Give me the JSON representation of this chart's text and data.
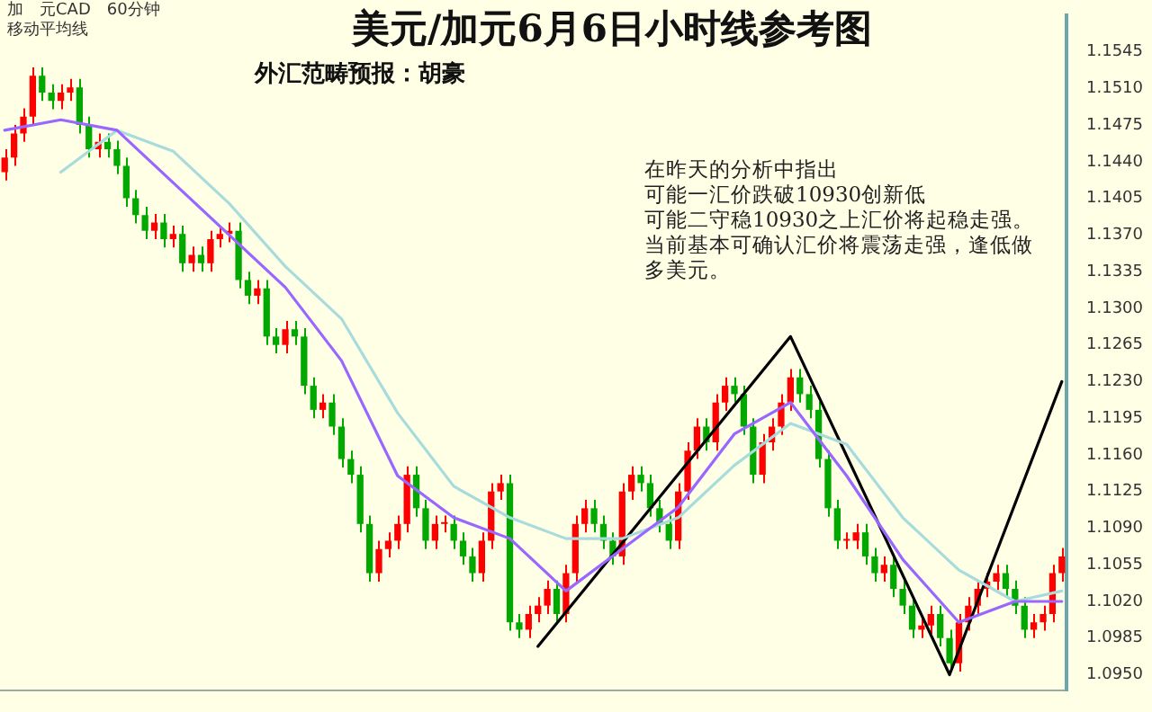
{
  "chart_data": {
    "type": "candlestick",
    "title": "美元/加元6月6日小时线参考图",
    "subtitle": "外汇范畴预报：胡豪",
    "annotations": [
      "加　元CAD　60分钟",
      "移动平均线",
      "在昨天的分析中指出",
      "可能一汇价跌破10930创新低",
      "可能二守稳10930之上汇价将起稳走强。",
      "当前基本可确认汇价将震荡走强，逢低做",
      "多美元。"
    ],
    "categories": [
      null,
      null,
      null,
      null,
      null,
      null,
      null,
      null,
      null,
      null,
      null,
      null,
      null,
      null,
      null,
      null,
      null,
      null,
      null,
      null,
      null,
      null,
      null,
      null,
      null,
      null,
      null,
      null,
      null,
      null,
      null,
      null,
      null,
      null,
      null,
      null,
      null,
      null,
      null,
      null,
      null,
      null,
      null,
      null,
      null,
      null,
      null,
      null,
      null,
      null,
      null,
      null,
      null,
      null,
      null,
      null,
      null,
      null,
      null,
      null,
      null,
      null,
      null,
      null,
      null,
      null,
      null,
      null,
      null,
      null,
      null,
      null,
      null,
      null,
      null,
      null,
      null,
      null,
      null,
      null,
      null,
      null,
      null,
      null,
      null,
      null,
      null,
      null,
      null,
      null,
      null,
      null,
      null,
      null,
      null,
      null,
      null,
      null,
      null,
      null,
      null,
      null,
      null,
      null,
      null,
      null,
      null,
      null,
      null,
      null,
      null,
      null,
      null,
      null
    ],
    "ohlc": [
      [
        1.143,
        1.1452,
        1.1422,
        1.1444
      ],
      [
        1.1444,
        1.1475,
        1.1436,
        1.1467
      ],
      [
        1.1467,
        1.1491,
        1.1459,
        1.1483
      ],
      [
        1.1483,
        1.153,
        1.1475,
        1.1522
      ],
      [
        1.1522,
        1.153,
        1.1498,
        1.1506
      ],
      [
        1.1506,
        1.1514,
        1.149,
        1.1498
      ],
      [
        1.1498,
        1.1514,
        1.149,
        1.1506
      ],
      [
        1.1506,
        1.1519,
        1.1498,
        1.1511
      ],
      [
        1.1511,
        1.1519,
        1.1467,
        1.1475
      ],
      [
        1.1475,
        1.1483,
        1.1444,
        1.1452
      ],
      [
        1.1452,
        1.1467,
        1.1444,
        1.1459
      ],
      [
        1.1459,
        1.1467,
        1.1444,
        1.1452
      ],
      [
        1.1452,
        1.146,
        1.1428,
        1.1436
      ],
      [
        1.1436,
        1.1444,
        1.1397,
        1.1405
      ],
      [
        1.1405,
        1.1413,
        1.1381,
        1.1389
      ],
      [
        1.1389,
        1.1397,
        1.1366,
        1.1374
      ],
      [
        1.1374,
        1.139,
        1.1366,
        1.1382
      ],
      [
        1.1382,
        1.139,
        1.1358,
        1.1366
      ],
      [
        1.1366,
        1.1379,
        1.1358,
        1.1371
      ],
      [
        1.1371,
        1.1379,
        1.1335,
        1.1343
      ],
      [
        1.1343,
        1.1359,
        1.1335,
        1.1351
      ],
      [
        1.1351,
        1.1359,
        1.1335,
        1.1343
      ],
      [
        1.1343,
        1.1374,
        1.1335,
        1.1366
      ],
      [
        1.1366,
        1.1379,
        1.1358,
        1.1371
      ],
      [
        1.1371,
        1.1382,
        1.1363,
        1.1374
      ],
      [
        1.1374,
        1.1382,
        1.1319,
        1.1327
      ],
      [
        1.1327,
        1.1335,
        1.1304,
        1.1312
      ],
      [
        1.1312,
        1.1327,
        1.1304,
        1.1319
      ],
      [
        1.1319,
        1.1327,
        1.1265,
        1.1273
      ],
      [
        1.1273,
        1.1281,
        1.1257,
        1.1265
      ],
      [
        1.1265,
        1.1288,
        1.1257,
        1.128
      ],
      [
        1.128,
        1.1288,
        1.1265,
        1.1273
      ],
      [
        1.1273,
        1.1281,
        1.1218,
        1.1226
      ],
      [
        1.1226,
        1.1234,
        1.1195,
        1.1203
      ],
      [
        1.1203,
        1.1218,
        1.1195,
        1.121
      ],
      [
        1.121,
        1.1218,
        1.1179,
        1.1187
      ],
      [
        1.1187,
        1.1195,
        1.1148,
        1.1156
      ],
      [
        1.1156,
        1.1164,
        1.1133,
        1.1141
      ],
      [
        1.1141,
        1.1149,
        1.1086,
        1.1094
      ],
      [
        1.1094,
        1.1102,
        1.1039,
        1.1047
      ],
      [
        1.1047,
        1.1078,
        1.1039,
        1.107
      ],
      [
        1.107,
        1.1086,
        1.1062,
        1.1078
      ],
      [
        1.1078,
        1.1102,
        1.107,
        1.1094
      ],
      [
        1.1094,
        1.1149,
        1.1086,
        1.1141
      ],
      [
        1.1141,
        1.1149,
        1.1101,
        1.1109
      ],
      [
        1.1109,
        1.1117,
        1.107,
        1.1078
      ],
      [
        1.1078,
        1.1102,
        1.107,
        1.1094
      ],
      [
        1.1094,
        1.1102,
        1.1086,
        1.1094
      ],
      [
        1.1094,
        1.1102,
        1.107,
        1.1078
      ],
      [
        1.1078,
        1.1086,
        1.1055,
        1.1063
      ],
      [
        1.1063,
        1.1071,
        1.1039,
        1.1047
      ],
      [
        1.1047,
        1.1086,
        1.1039,
        1.1078
      ],
      [
        1.1078,
        1.1133,
        1.107,
        1.1125
      ],
      [
        1.1125,
        1.1141,
        1.1117,
        1.1133
      ],
      [
        1.1133,
        1.1141,
        1.0992,
        1.1
      ],
      [
        1.1,
        1.1008,
        1.0985,
        1.0993
      ],
      [
        1.0993,
        1.1016,
        1.0985,
        1.1008
      ],
      [
        1.1008,
        1.1024,
        1.1,
        1.1016
      ],
      [
        1.1016,
        1.104,
        1.1008,
        1.1032
      ],
      [
        1.1032,
        1.104,
        1.1,
        1.1008
      ],
      [
        1.1008,
        1.1055,
        1.1,
        1.1047
      ],
      [
        1.1047,
        1.1102,
        1.1039,
        1.1094
      ],
      [
        1.1094,
        1.1117,
        1.1086,
        1.1109
      ],
      [
        1.1109,
        1.1117,
        1.1086,
        1.1094
      ],
      [
        1.1094,
        1.1102,
        1.107,
        1.1078
      ],
      [
        1.1078,
        1.1086,
        1.1055,
        1.1063
      ],
      [
        1.1063,
        1.1133,
        1.1055,
        1.1125
      ],
      [
        1.1125,
        1.1149,
        1.1117,
        1.1141
      ],
      [
        1.1141,
        1.1149,
        1.1125,
        1.1133
      ],
      [
        1.1133,
        1.1141,
        1.1101,
        1.1109
      ],
      [
        1.1109,
        1.1117,
        1.1086,
        1.1094
      ],
      [
        1.1094,
        1.1102,
        1.107,
        1.1078
      ],
      [
        1.1078,
        1.1133,
        1.107,
        1.1125
      ],
      [
        1.1125,
        1.1172,
        1.1117,
        1.1164
      ],
      [
        1.1164,
        1.1195,
        1.1156,
        1.1187
      ],
      [
        1.1187,
        1.1195,
        1.1164,
        1.1172
      ],
      [
        1.1172,
        1.1218,
        1.1164,
        1.121
      ],
      [
        1.121,
        1.1234,
        1.1202,
        1.1226
      ],
      [
        1.1226,
        1.1234,
        1.121,
        1.1218
      ],
      [
        1.1218,
        1.1226,
        1.1179,
        1.1187
      ],
      [
        1.1187,
        1.1195,
        1.1133,
        1.1141
      ],
      [
        1.1141,
        1.118,
        1.1133,
        1.1172
      ],
      [
        1.1172,
        1.1195,
        1.1164,
        1.1187
      ],
      [
        1.1187,
        1.1218,
        1.1179,
        1.121
      ],
      [
        1.121,
        1.1242,
        1.1202,
        1.1234
      ],
      [
        1.1234,
        1.1242,
        1.121,
        1.1218
      ],
      [
        1.1218,
        1.1226,
        1.1195,
        1.1203
      ],
      [
        1.1203,
        1.1211,
        1.1148,
        1.1156
      ],
      [
        1.1156,
        1.1164,
        1.1101,
        1.1109
      ],
      [
        1.1109,
        1.1117,
        1.107,
        1.1078
      ],
      [
        1.1078,
        1.1086,
        1.107,
        1.1078
      ],
      [
        1.1078,
        1.1094,
        1.107,
        1.1086
      ],
      [
        1.1086,
        1.1094,
        1.1055,
        1.1063
      ],
      [
        1.1063,
        1.1071,
        1.1039,
        1.1047
      ],
      [
        1.1047,
        1.1063,
        1.1039,
        1.1055
      ],
      [
        1.1055,
        1.1063,
        1.1024,
        1.1032
      ],
      [
        1.1032,
        1.104,
        1.1008,
        1.1016
      ],
      [
        1.1016,
        1.1024,
        1.0985,
        1.0993
      ],
      [
        1.0993,
        1.1005,
        1.0985,
        1.0997
      ],
      [
        1.0997,
        1.1016,
        1.0989,
        1.1008
      ],
      [
        1.1008,
        1.1016,
        1.0977,
        1.0985
      ],
      [
        1.0985,
        1.0993,
        1.0953,
        1.0961
      ],
      [
        1.0961,
        1.1008,
        1.0953,
        1.1
      ],
      [
        1.1,
        1.1024,
        1.0992,
        1.1016
      ],
      [
        1.1016,
        1.104,
        1.1008,
        1.1032
      ],
      [
        1.1032,
        1.1047,
        1.1024,
        1.1039
      ],
      [
        1.1039,
        1.1055,
        1.1031,
        1.1047
      ],
      [
        1.1047,
        1.1055,
        1.1024,
        1.1032
      ],
      [
        1.1032,
        1.104,
        1.1008,
        1.1016
      ],
      [
        1.1016,
        1.1024,
        1.0985,
        1.0993
      ],
      [
        1.0993,
        1.1008,
        1.0985,
        1.1
      ],
      [
        1.1,
        1.1016,
        1.0992,
        1.1008
      ],
      [
        1.1008,
        1.1055,
        1.1,
        1.1047
      ],
      [
        1.1047,
        1.1071,
        1.1039,
        1.1063
      ]
    ],
    "series": [
      {
        "type": "line",
        "color": "#9966ff",
        "values": [
          1.147,
          null,
          null,
          null,
          null,
          null,
          1.148,
          null,
          null,
          null,
          null,
          null,
          1.147,
          null,
          null,
          null,
          null,
          null,
          1.142,
          null,
          null,
          null,
          null,
          null,
          1.137,
          null,
          null,
          null,
          null,
          null,
          1.132,
          null,
          null,
          null,
          null,
          null,
          1.125,
          null,
          null,
          null,
          null,
          null,
          1.114,
          null,
          null,
          null,
          null,
          null,
          1.11,
          null,
          null,
          null,
          null,
          null,
          1.108,
          null,
          null,
          null,
          null,
          null,
          1.103,
          null,
          null,
          null,
          null,
          null,
          1.107,
          null,
          null,
          null,
          null,
          null,
          1.111,
          null,
          null,
          null,
          null,
          null,
          1.118,
          null,
          null,
          null,
          null,
          null,
          1.121,
          null,
          null,
          null,
          null,
          null,
          1.114,
          null,
          null,
          null,
          null,
          null,
          1.106,
          null,
          null,
          null,
          null,
          null,
          1.1,
          null,
          null,
          null,
          null,
          null,
          1.102,
          null,
          null,
          null,
          null,
          1.102
        ]
      },
      {
        "type": "line",
        "color": "#a8dcdc",
        "values": [
          null,
          null,
          null,
          null,
          null,
          null,
          1.143,
          null,
          null,
          null,
          null,
          null,
          1.147,
          null,
          null,
          null,
          null,
          null,
          1.145,
          null,
          null,
          null,
          null,
          null,
          1.14,
          null,
          null,
          null,
          null,
          null,
          1.134,
          null,
          null,
          null,
          null,
          null,
          1.129,
          null,
          null,
          null,
          null,
          null,
          1.12,
          null,
          null,
          null,
          null,
          null,
          1.113,
          null,
          null,
          null,
          null,
          null,
          1.11,
          null,
          null,
          null,
          null,
          null,
          1.108,
          null,
          null,
          null,
          null,
          null,
          1.108,
          null,
          null,
          null,
          null,
          null,
          1.11,
          null,
          null,
          null,
          null,
          null,
          1.115,
          null,
          null,
          null,
          null,
          null,
          1.119,
          null,
          null,
          null,
          null,
          null,
          1.117,
          null,
          null,
          null,
          null,
          null,
          1.11,
          null,
          null,
          null,
          null,
          null,
          1.105,
          null,
          null,
          null,
          null,
          null,
          1.102,
          null,
          null,
          null,
          null,
          1.103
        ]
      },
      {
        "type": "line",
        "color": "#000000",
        "values": [
          null,
          null,
          null,
          null,
          null,
          null,
          null,
          null,
          null,
          null,
          null,
          null,
          null,
          null,
          null,
          null,
          null,
          null,
          null,
          null,
          null,
          null,
          null,
          null,
          null,
          null,
          null,
          null,
          null,
          null,
          null,
          null,
          null,
          null,
          null,
          null,
          null,
          null,
          null,
          null,
          null,
          null,
          null,
          null,
          null,
          null,
          null,
          null,
          null,
          null,
          null,
          null,
          null,
          null,
          null,
          null,
          null,
          1.0977,
          null,
          null,
          null,
          null,
          null,
          null,
          null,
          null,
          null,
          null,
          null,
          null,
          null,
          null,
          null,
          null,
          null,
          null,
          null,
          null,
          null,
          null,
          null,
          null,
          null,
          null,
          1.1273,
          null,
          null,
          null,
          null,
          null,
          null,
          null,
          null,
          null,
          null,
          null,
          null,
          null,
          null,
          null,
          null,
          1.095,
          null,
          null,
          null,
          null,
          null,
          null,
          null,
          null,
          null,
          null,
          null,
          1.123
        ]
      }
    ],
    "ylim": [
      1.0935,
      1.158
    ],
    "yticks": [
      {
        "value": 1.095,
        "label": "1.0950"
      },
      {
        "value": 1.0985,
        "label": "1.0985"
      },
      {
        "value": 1.102,
        "label": "1.1020"
      },
      {
        "value": 1.1055,
        "label": "1.1055"
      },
      {
        "value": 1.109,
        "label": "1.1090"
      },
      {
        "value": 1.1125,
        "label": "1.1125"
      },
      {
        "value": 1.116,
        "label": "1.1160"
      },
      {
        "value": 1.1195,
        "label": "1.1195"
      },
      {
        "value": 1.123,
        "label": "1.1230"
      },
      {
        "value": 1.1265,
        "label": "1.1265"
      },
      {
        "value": 1.13,
        "label": "1.1300"
      },
      {
        "value": 1.1335,
        "label": "1.1335"
      },
      {
        "value": 1.137,
        "label": "1.1370"
      },
      {
        "value": 1.1405,
        "label": "1.1405"
      },
      {
        "value": 1.144,
        "label": "1.1440"
      },
      {
        "value": 1.1475,
        "label": "1.1475"
      },
      {
        "value": 1.151,
        "label": "1.1510"
      },
      {
        "value": 1.1545,
        "label": "1.1545"
      }
    ],
    "tick_labels": "y",
    "grid": false,
    "legend": false
  }
}
